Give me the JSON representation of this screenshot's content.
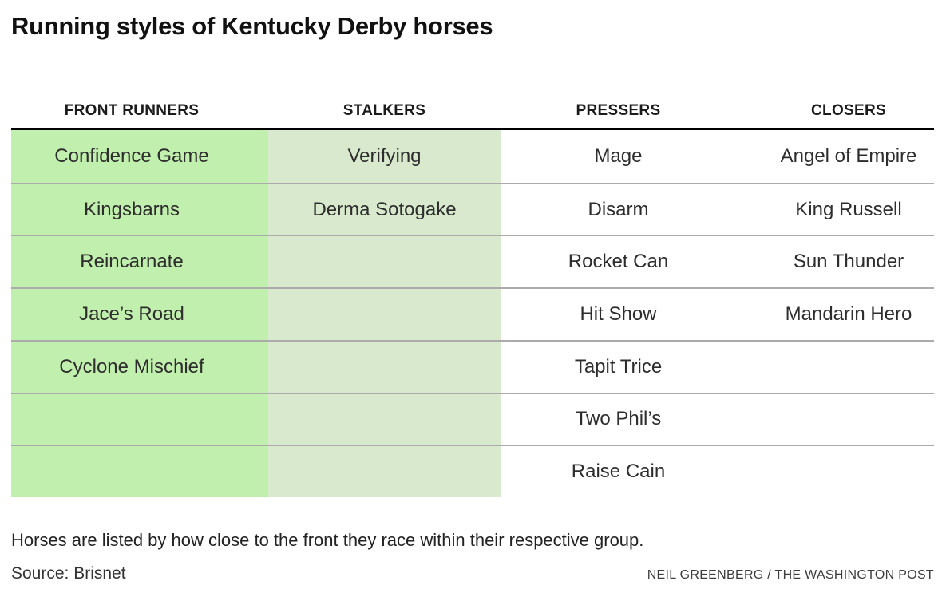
{
  "title": "Running styles of Kentucky Derby horses",
  "chart_data": {
    "type": "table",
    "title": "Running styles of Kentucky Derby horses",
    "columns": [
      "FRONT RUNNERS",
      "STALKERS",
      "PRESSERS",
      "CLOSERS"
    ],
    "groups": {
      "front_runners": [
        "Confidence Game",
        "Kingsbarns",
        "Reincarnate",
        "Jace’s Road",
        "Cyclone Mischief"
      ],
      "stalkers": [
        "Verifying",
        "Derma Sotogake"
      ],
      "pressers": [
        "Mage",
        "Disarm",
        "Rocket Can",
        "Hit Show",
        "Tapit Trice",
        "Two Phil’s",
        "Raise Cain"
      ],
      "closers": [
        "Angel of Empire",
        "King Russell",
        "Sun Thunder",
        "Mandarin Hero"
      ]
    },
    "layout_hints": {
      "highlighted_columns": [
        "FRONT RUNNERS",
        "STALKERS"
      ],
      "rows": 7,
      "grid": "horizontal dividers only"
    }
  },
  "table": {
    "headers": [
      "FRONT RUNNERS",
      "STALKERS",
      "PRESSERS",
      "CLOSERS"
    ],
    "rows": [
      [
        "Confidence Game",
        "Verifying",
        "Mage",
        "Angel of Empire"
      ],
      [
        "Kingsbarns",
        "Derma Sotogake",
        "Disarm",
        "King Russell"
      ],
      [
        "Reincarnate",
        "",
        "Rocket Can",
        "Sun Thunder"
      ],
      [
        "Jace’s Road",
        "",
        "Hit Show",
        "Mandarin Hero"
      ],
      [
        "Cyclone Mischief",
        "",
        "Tapit Trice",
        ""
      ],
      [
        "",
        "",
        "Two Phil’s",
        ""
      ],
      [
        "",
        "",
        "Raise Cain",
        ""
      ]
    ]
  },
  "note": "Horses are listed by how close to the front they race within their respective group.",
  "source": "Source: Brisnet",
  "credit": "NEIL GREENBERG / THE WASHINGTON POST",
  "colors": {
    "front_runners_bg": "#c1efad",
    "stalkers_bg": "#d8e9ce",
    "header_rule": "#000000",
    "row_divider": "#ababab"
  }
}
